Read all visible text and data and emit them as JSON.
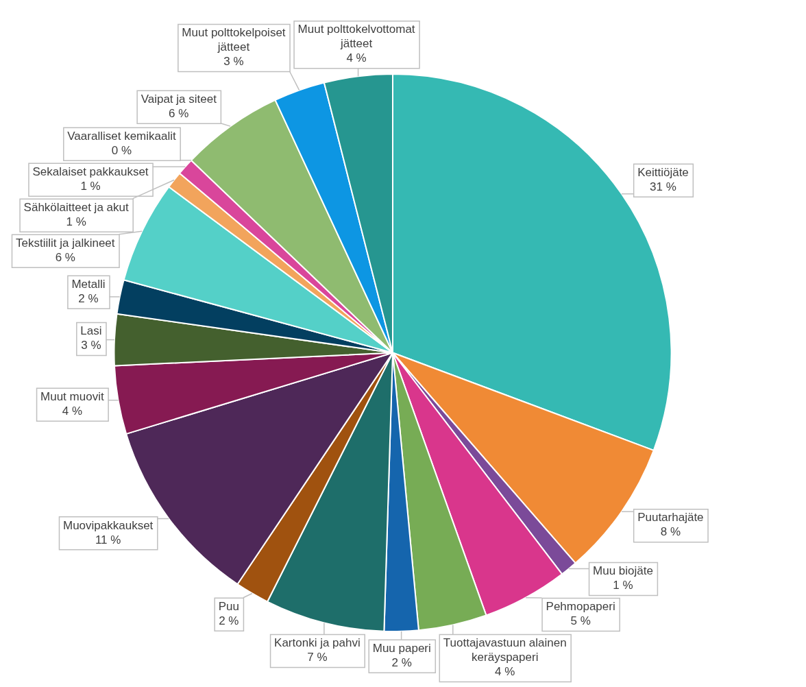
{
  "chart_data": {
    "type": "pie",
    "categories": [
      "Keittiöjäte",
      "Puutarhajäte",
      "Muu biojäte",
      "Pehmopaperi",
      "Tuottajavastuun alainen keräyspaperi",
      "Muu paperi",
      "Kartonki ja pahvi",
      "Puu",
      "Muovipakkaukset",
      "Muut muovit",
      "Lasi",
      "Metalli",
      "Tekstiilit ja jalkineet",
      "Sähkölaitteet ja akut",
      "Sekalaiset pakkaukset",
      "Vaaralliset kemikaalit",
      "Vaipat ja siteet",
      "Muut polttokelpoiset jätteet",
      "Muut polttokelvottomat jätteet"
    ],
    "values": [
      31,
      8,
      1,
      5,
      4,
      2,
      7,
      2,
      11,
      4,
      3,
      2,
      6,
      1,
      1,
      0,
      6,
      3,
      4
    ],
    "value_labels": [
      "31 %",
      "8 %",
      "1 %",
      "5 %",
      "4 %",
      "2 %",
      "7 %",
      "2 %",
      "11 %",
      "4 %",
      "3 %",
      "2 %",
      "6 %",
      "1 %",
      "1 %",
      "0 %",
      "6 %",
      "3 %",
      "4 %"
    ],
    "colors": [
      "#35b9b3",
      "#f08a35",
      "#7b4a99",
      "#d9368c",
      "#77ac55",
      "#1565ad",
      "#1e6e6a",
      "#a0520f",
      "#4e2858",
      "#861a52",
      "#44602e",
      "#033f60",
      "#54d0c8",
      "#f2a45c",
      "#d9469b",
      "#a64d79",
      "#8fbb70",
      "#0d96e3",
      "#269690"
    ],
    "legend": false
  }
}
